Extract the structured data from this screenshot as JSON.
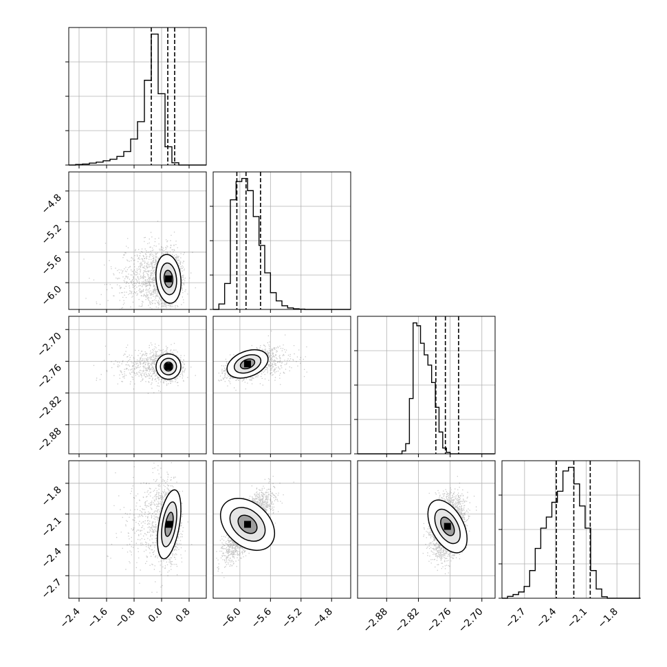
{
  "chart_data": {
    "type": "corner",
    "parameters": 4,
    "grid": true,
    "quantile_lines": "dashed",
    "colors": {
      "line": "#000000",
      "grid": "#b0b0b0",
      "scatter": "#000000"
    },
    "axes": [
      {
        "range": [
          -2.7,
          1.3
        ],
        "ticks": [
          "−2.4",
          "−1.6",
          "−0.8",
          "0.0",
          "0.8"
        ],
        "tick_values": [
          -2.4,
          -1.6,
          -0.8,
          0.0,
          0.8
        ]
      },
      {
        "range": [
          -6.35,
          -4.55
        ],
        "ticks": [
          "−6.0",
          "−5.6",
          "−5.2",
          "−4.8"
        ],
        "tick_values": [
          -6.0,
          -5.6,
          -5.2,
          -4.8
        ]
      },
      {
        "range": [
          -2.935,
          -2.675
        ],
        "ticks": [
          "−2.88",
          "−2.82",
          "−2.76",
          "−2.70"
        ],
        "tick_values": [
          -2.88,
          -2.82,
          -2.76,
          -2.7
        ]
      },
      {
        "range": [
          -2.92,
          -1.58
        ],
        "ticks": [
          "−2.7",
          "−2.4",
          "−2.1",
          "−1.8"
        ],
        "tick_values": [
          -2.7,
          -2.4,
          -2.1,
          -1.8
        ]
      }
    ],
    "quantiles": [
      [
        -0.3,
        0.18,
        0.38
      ],
      [
        -6.04,
        -5.92,
        -5.73
      ],
      [
        -2.787,
        -2.769,
        -2.744
      ],
      [
        -2.39,
        -2.22,
        -2.06
      ]
    ],
    "histograms": [
      {
        "edges_start": -2.7,
        "bin_width": 0.2,
        "counts": [
          0,
          0.03,
          0.05,
          0.1,
          0.15,
          0.22,
          0.3,
          0.45,
          0.7,
          1.35,
          2.25,
          4.4,
          6.8,
          3.7,
          0.95,
          0.12,
          0,
          0,
          0,
          0
        ]
      },
      {
        "edges_start": -6.35,
        "bin_width": 0.075,
        "counts": [
          0,
          0.18,
          0.85,
          3.6,
          4.2,
          4.3,
          3.9,
          3.05,
          2.1,
          1.2,
          0.55,
          0.28,
          0.12,
          0.05,
          0.02,
          0.01,
          0,
          0,
          0,
          0,
          0,
          0,
          0,
          0
        ]
      },
      {
        "edges_start": -2.935,
        "bin_width": 0.007,
        "counts": [
          0,
          0,
          0,
          0,
          0,
          0,
          0,
          0,
          0,
          0,
          0,
          0,
          0.1,
          0.35,
          1.9,
          4.5,
          4.4,
          3.8,
          3.4,
          3.05,
          2.45,
          1.6,
          0.75,
          0.2,
          0.05,
          0,
          0,
          0,
          0,
          0,
          0,
          0,
          0,
          0,
          0,
          0,
          0
        ]
      },
      {
        "edges_start": -2.92,
        "bin_width": 0.054,
        "counts": [
          0,
          0.05,
          0.1,
          0.17,
          0.32,
          0.75,
          1.35,
          1.9,
          2.2,
          2.6,
          2.9,
          3.45,
          3.55,
          3.1,
          2.5,
          1.9,
          0.75,
          0.25,
          0.04,
          0,
          0,
          0,
          0,
          0,
          0
        ]
      }
    ],
    "pairs": [
      {
        "x": 0,
        "y": 1,
        "mean": [
          0.2,
          -5.95
        ],
        "sd": [
          0.18,
          0.16
        ],
        "rho": 0.05,
        "tail": "left",
        "spread": [
          0.7,
          0.15
        ]
      },
      {
        "x": 0,
        "y": 2,
        "mean": [
          0.2,
          -2.77
        ],
        "sd": [
          0.18,
          0.012
        ],
        "rho": -0.1,
        "tail": "left",
        "spread": [
          0.7,
          0.012
        ]
      },
      {
        "x": 1,
        "y": 2,
        "mean": [
          -5.9,
          -2.765
        ],
        "sd": [
          0.14,
          0.012
        ],
        "rho": 0.65,
        "tail": "right",
        "spread": [
          0.25,
          0.012
        ]
      },
      {
        "x": 0,
        "y": 3,
        "mean": [
          0.22,
          -2.2
        ],
        "sd": [
          0.15,
          0.17
        ],
        "rho": -0.05,
        "tail": "left",
        "spread": [
          0.6,
          0.15
        ]
      },
      {
        "x": 1,
        "y": 3,
        "mean": [
          -5.9,
          -2.2
        ],
        "sd": [
          0.14,
          0.15
        ],
        "rho": 0.78,
        "tail": "none",
        "spread": [
          0,
          0
        ]
      },
      {
        "x": 2,
        "y": 3,
        "mean": [
          -2.765,
          -2.22
        ],
        "sd": [
          0.015,
          0.14
        ],
        "rho": 0.3,
        "tail": "none",
        "spread": [
          0,
          0
        ]
      }
    ]
  }
}
